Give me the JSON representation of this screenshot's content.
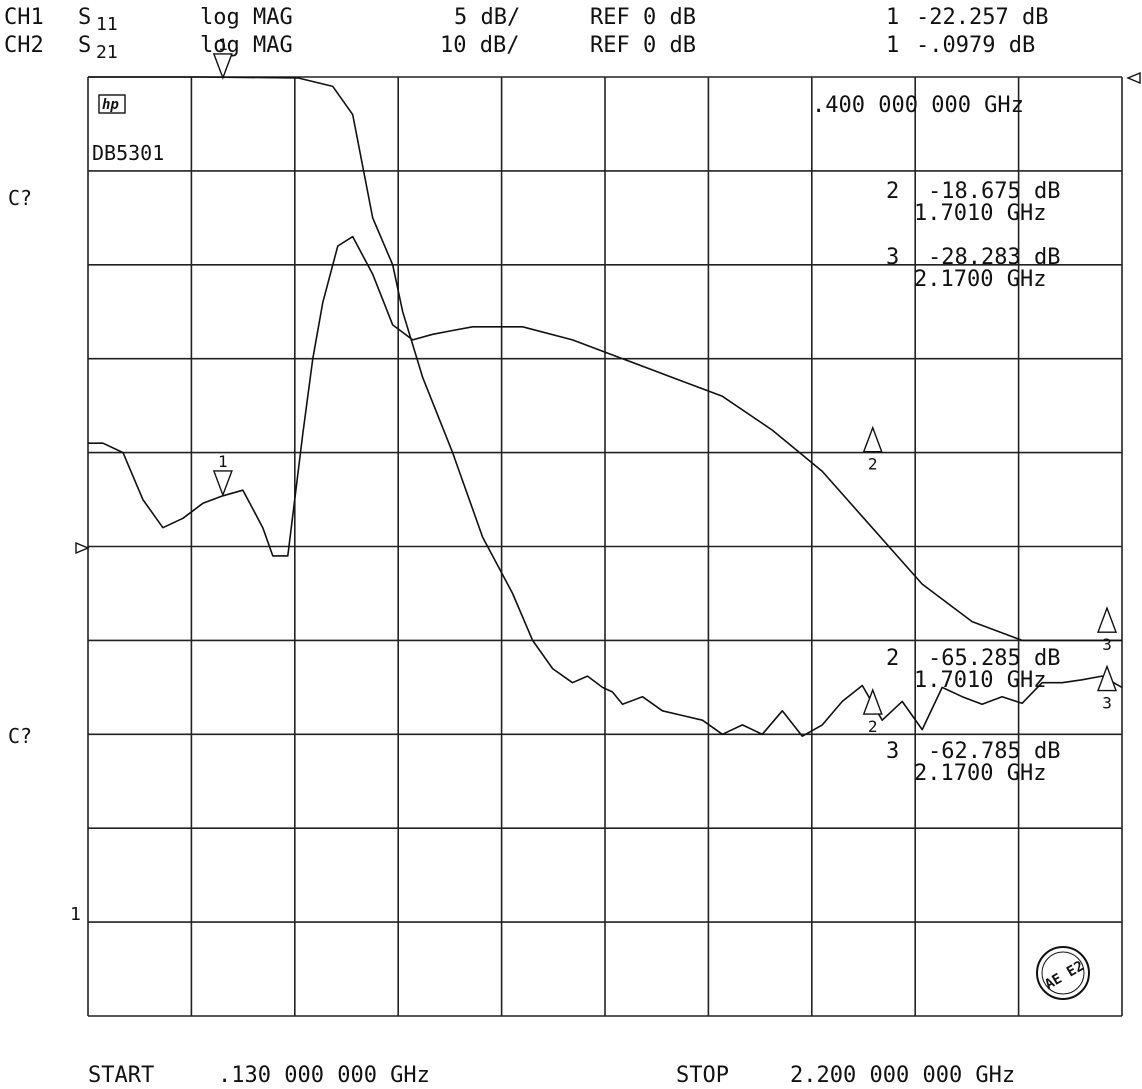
{
  "header": {
    "ch1": {
      "label": "CH1",
      "param": "S",
      "param_sub": "11",
      "format": "log MAG",
      "scale": "5 dB/",
      "ref": "REF 0 dB",
      "marker": "1",
      "marker_value": "-22.257 dB"
    },
    "ch2": {
      "label": "CH2",
      "param": "S",
      "param_sub": "21",
      "format": "log MAG",
      "scale": "10 dB/",
      "ref": "REF 0 dB",
      "marker": "1",
      "marker_value": "-.0979 dB"
    }
  },
  "logo": "hp",
  "trace_id": "DB5301",
  "marker1_freq": ".400 000 000 GHz",
  "side_labels": {
    "upper": "C?",
    "lower": "C?",
    "marker1": "1"
  },
  "ch1_markers": [
    {
      "id": "2",
      "value": "-18.675 dB",
      "freq": "1.7010 GHz"
    },
    {
      "id": "3",
      "value": "-28.283 dB",
      "freq": "2.1700 GHz"
    }
  ],
  "ch2_markers": [
    {
      "id": "2",
      "value": "-65.285 dB",
      "freq": "1.7010 GHz"
    },
    {
      "id": "3",
      "value": "-62.785 dB",
      "freq": "2.1700 GHz"
    }
  ],
  "footer": {
    "start_label": "START",
    "start_value": ".130 000 000 GHz",
    "stop_label": "STOP",
    "stop_value": "2.200 000 000 GHz"
  },
  "stamp": "AE E2",
  "chart_data": {
    "type": "line",
    "x_unit": "GHz",
    "xlim": [
      0.13,
      2.2
    ],
    "series": [
      {
        "name": "S21",
        "scale_db_per_div": 10,
        "ref_db": 0,
        "x": [
          0.13,
          0.35,
          0.55,
          0.62,
          0.66,
          0.7,
          0.74,
          0.76,
          0.8,
          0.86,
          0.92,
          0.98,
          1.02,
          1.06,
          1.1,
          1.13,
          1.16,
          1.18,
          1.2,
          1.24,
          1.28,
          1.32,
          1.36,
          1.4,
          1.44,
          1.48,
          1.52,
          1.56,
          1.6,
          1.64,
          1.68,
          1.72,
          1.76,
          1.8,
          1.84,
          1.88,
          1.92,
          1.96,
          2.0,
          2.04,
          2.08,
          2.12,
          2.16,
          2.2
        ],
        "y": [
          0,
          0,
          -0.1,
          -1,
          -4,
          -15,
          -20,
          -25,
          -32,
          -40,
          -49,
          -55,
          -60,
          -63,
          -64.5,
          -63.8,
          -65,
          -65.5,
          -66.8,
          -66,
          -67.5,
          -68,
          -68.5,
          -70,
          -69,
          -70,
          -67.5,
          -70.2,
          -69,
          -66.5,
          -64.8,
          -68.5,
          -66.5,
          -69.5,
          -65,
          -66,
          -66.8,
          -66,
          -66.7,
          -64.5,
          -64.5,
          -64.2,
          -63.8,
          -65
        ]
      },
      {
        "name": "S11",
        "scale_db_per_div": 5,
        "ref_db": 0,
        "x": [
          0.13,
          0.16,
          0.2,
          0.24,
          0.28,
          0.32,
          0.36,
          0.4,
          0.44,
          0.48,
          0.5,
          0.53,
          0.56,
          0.58,
          0.6,
          0.63,
          0.66,
          0.7,
          0.74,
          0.78,
          0.82,
          0.86,
          0.9,
          1.0,
          1.1,
          1.2,
          1.3,
          1.4,
          1.5,
          1.6,
          1.7,
          1.8,
          1.9,
          2.0,
          2.03,
          2.1,
          2.2
        ],
        "y": [
          -19.5,
          -19.5,
          -20,
          -22.5,
          -24,
          -23.5,
          -22.7,
          -22.3,
          -22,
          -24,
          -25.5,
          -25.5,
          -19,
          -15,
          -12,
          -9,
          -8.5,
          -10.5,
          -13.2,
          -14,
          -13.7,
          -13.5,
          -13.3,
          -13.3,
          -14,
          -15,
          -16,
          -17,
          -18.8,
          -21,
          -24,
          -27,
          -29,
          -30,
          -30,
          -30,
          -30
        ]
      }
    ],
    "markers": [
      {
        "id": "1",
        "x": 0.4,
        "s21": -0.0979,
        "s11": -22.257
      },
      {
        "id": "2",
        "x": 1.701,
        "s21": -65.285,
        "s11": -18.675
      },
      {
        "id": "3",
        "x": 2.17,
        "s21": -62.785,
        "s11": -28.283
      }
    ],
    "grid": true
  }
}
